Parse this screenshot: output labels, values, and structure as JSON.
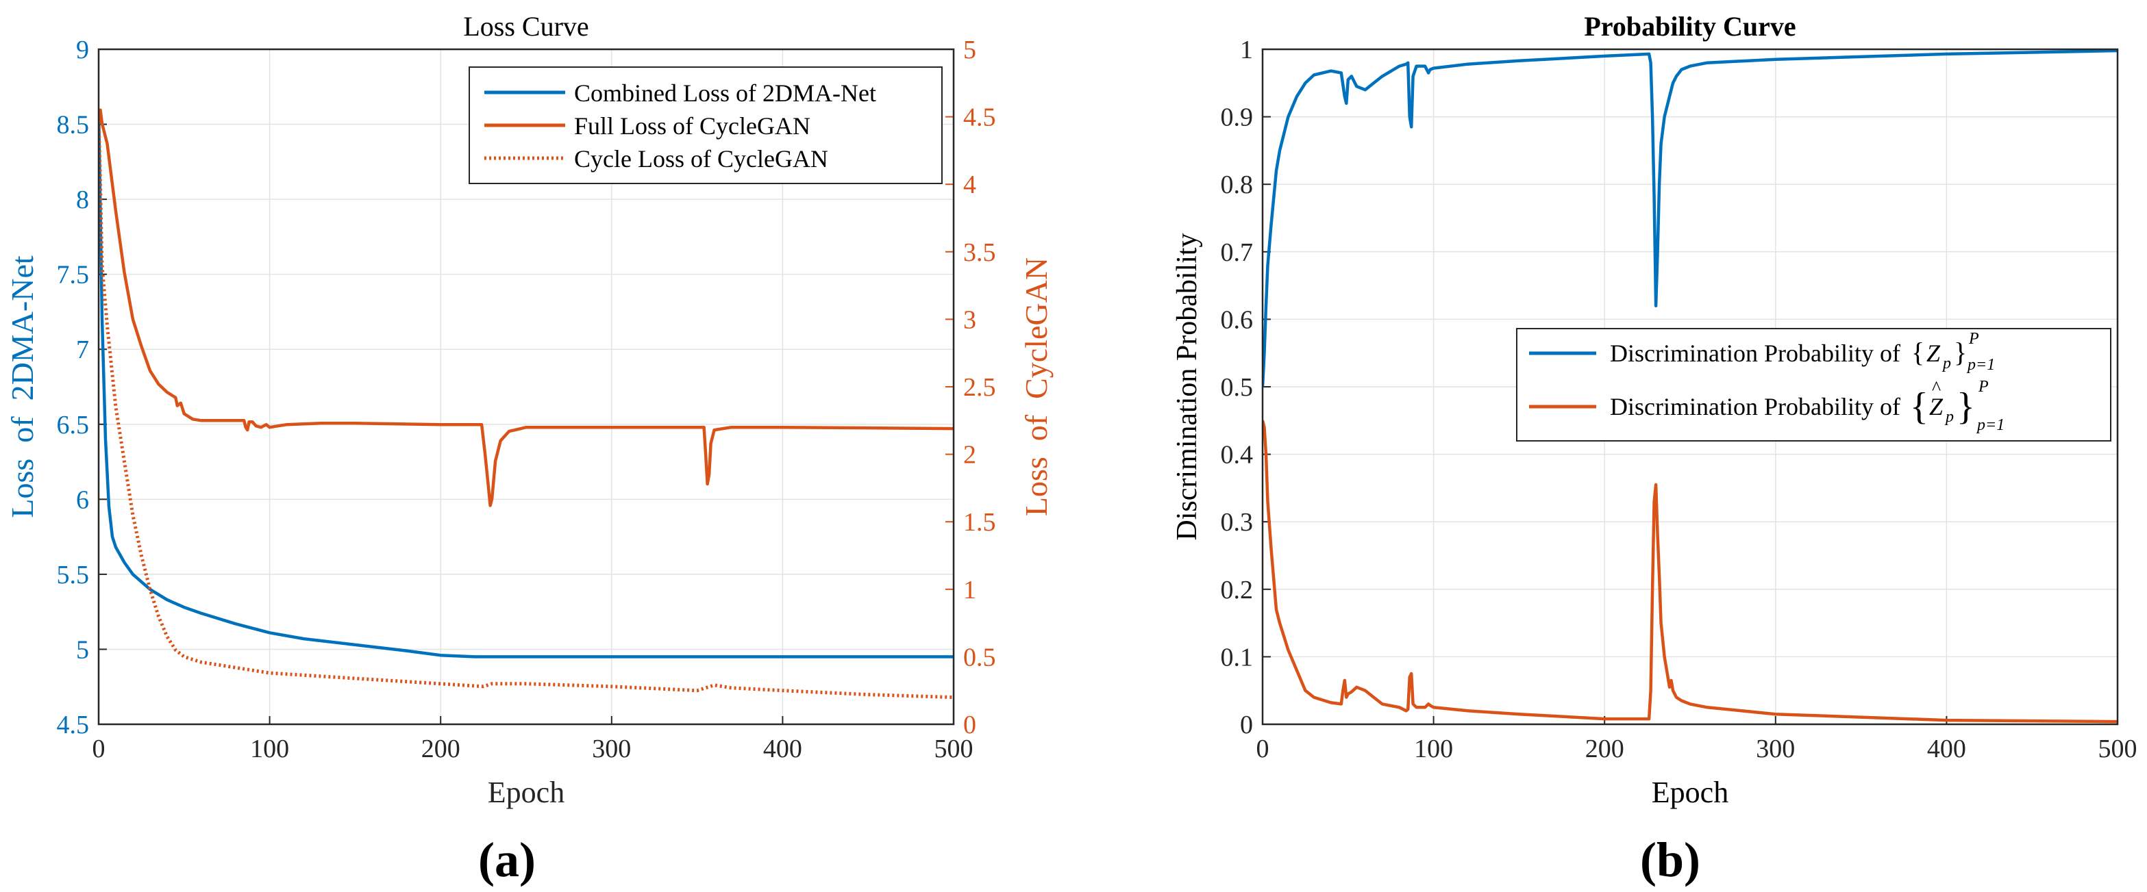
{
  "chart_data": [
    {
      "panel_label": "(a)",
      "type": "line",
      "title": "Loss Curve",
      "xlabel": "Epoch",
      "ylabel_left": "Loss  of  2DMA-Net",
      "ylabel_right": "Loss  of  CycleGAN",
      "xlim": [
        0,
        500
      ],
      "ylim_left": [
        4.5,
        9
      ],
      "ylim_right": [
        0,
        5
      ],
      "grid": true,
      "legend_position": "top-right",
      "xticks": [
        "0",
        "100",
        "200",
        "300",
        "400",
        "500"
      ],
      "yticks_left": [
        "4.5",
        "5",
        "5.5",
        "6",
        "6.5",
        "7",
        "7.5",
        "8",
        "8.5",
        "9"
      ],
      "yticks_right": [
        "0",
        "0.5",
        "1",
        "1.5",
        "2",
        "2.5",
        "3",
        "3.5",
        "4",
        "4.5",
        "5"
      ],
      "series": [
        {
          "name": "Combined Loss of 2DMA-Net",
          "axis": "left",
          "color": "#0072BD",
          "style": "solid",
          "x": [
            0,
            2,
            4,
            6,
            8,
            10,
            15,
            20,
            30,
            40,
            50,
            60,
            80,
            100,
            120,
            150,
            180,
            200,
            220,
            250,
            300,
            350,
            400,
            450,
            500
          ],
          "y": [
            8.6,
            7.2,
            6.4,
            5.95,
            5.75,
            5.68,
            5.58,
            5.5,
            5.4,
            5.33,
            5.28,
            5.24,
            5.17,
            5.11,
            5.07,
            5.03,
            4.99,
            4.96,
            4.95,
            4.95,
            4.95,
            4.95,
            4.95,
            4.95,
            4.95
          ]
        },
        {
          "name": "Full Loss of CycleGAN",
          "axis": "right",
          "color": "#D95319",
          "style": "solid",
          "x": [
            0,
            1,
            2,
            3,
            5,
            8,
            10,
            15,
            20,
            25,
            30,
            35,
            40,
            45,
            46,
            48,
            50,
            55,
            60,
            70,
            85,
            86,
            87,
            88,
            90,
            92,
            95,
            98,
            100,
            110,
            130,
            150,
            200,
            224,
            226,
            228,
            229,
            230,
            232,
            235,
            240,
            250,
            300,
            354,
            355,
            356,
            357,
            358,
            360,
            370,
            400,
            500
          ],
          "y": [
            4.45,
            4.55,
            4.45,
            4.4,
            4.3,
            4.0,
            3.8,
            3.35,
            3.0,
            2.8,
            2.62,
            2.52,
            2.46,
            2.42,
            2.36,
            2.38,
            2.3,
            2.26,
            2.25,
            2.25,
            2.25,
            2.2,
            2.18,
            2.24,
            2.24,
            2.21,
            2.2,
            2.22,
            2.2,
            2.22,
            2.23,
            2.23,
            2.22,
            2.22,
            2.0,
            1.75,
            1.62,
            1.67,
            1.95,
            2.1,
            2.17,
            2.2,
            2.2,
            2.2,
            2.0,
            1.78,
            1.85,
            2.08,
            2.18,
            2.2,
            2.2,
            2.19
          ]
        },
        {
          "name": "Cycle Loss of CycleGAN",
          "axis": "right",
          "color": "#D95319",
          "style": "dotted",
          "x": [
            0,
            1,
            2,
            5,
            10,
            15,
            20,
            25,
            30,
            35,
            40,
            45,
            50,
            60,
            70,
            80,
            90,
            100,
            150,
            200,
            225,
            230,
            250,
            300,
            350,
            360,
            370,
            400,
            450,
            500
          ],
          "y": [
            4.5,
            4.0,
            3.4,
            2.95,
            2.35,
            1.95,
            1.55,
            1.25,
            1.0,
            0.8,
            0.65,
            0.55,
            0.5,
            0.46,
            0.44,
            0.42,
            0.4,
            0.38,
            0.34,
            0.3,
            0.28,
            0.3,
            0.3,
            0.28,
            0.25,
            0.29,
            0.27,
            0.25,
            0.22,
            0.2
          ]
        }
      ]
    },
    {
      "panel_label": "(b)",
      "type": "line",
      "title": "Probability Curve",
      "xlabel": "Epoch",
      "ylabel": "Discrimination Probability",
      "xlim": [
        0,
        500
      ],
      "ylim": [
        0,
        1
      ],
      "grid": true,
      "legend_position": "center-right",
      "xticks": [
        "0",
        "100",
        "200",
        "300",
        "400",
        "500"
      ],
      "yticks": [
        "0",
        "0.1",
        "0.2",
        "0.3",
        "0.4",
        "0.5",
        "0.6",
        "0.7",
        "0.8",
        "0.9",
        "1"
      ],
      "series": [
        {
          "name": "Discrimination Probability of {Zp}p=1..P",
          "legend_text": "Discrimination Probability of ",
          "color": "#0072BD",
          "x": [
            0,
            1,
            2,
            3,
            5,
            8,
            10,
            15,
            20,
            25,
            30,
            40,
            46,
            48,
            49,
            50,
            52,
            55,
            60,
            65,
            70,
            80,
            84,
            85,
            86,
            87,
            88,
            90,
            95,
            97,
            98,
            100,
            120,
            150,
            200,
            226,
            227,
            228,
            229,
            230,
            231,
            232,
            233,
            235,
            238,
            240,
            242,
            245,
            250,
            260,
            300,
            400,
            500
          ],
          "y": [
            0.5,
            0.55,
            0.62,
            0.68,
            0.74,
            0.82,
            0.85,
            0.9,
            0.93,
            0.95,
            0.962,
            0.968,
            0.965,
            0.93,
            0.92,
            0.955,
            0.96,
            0.945,
            0.94,
            0.95,
            0.96,
            0.975,
            0.978,
            0.98,
            0.9,
            0.885,
            0.96,
            0.975,
            0.975,
            0.965,
            0.97,
            0.972,
            0.978,
            0.983,
            0.99,
            0.993,
            0.98,
            0.9,
            0.78,
            0.62,
            0.7,
            0.8,
            0.86,
            0.9,
            0.93,
            0.95,
            0.96,
            0.97,
            0.975,
            0.98,
            0.985,
            0.993,
            0.998
          ]
        },
        {
          "name": "Discrimination Probability of {Ẑp}p=1..P",
          "legend_text": "Discrimination Probability of ",
          "color": "#D95319",
          "x": [
            0,
            1,
            2,
            3,
            5,
            8,
            10,
            15,
            20,
            25,
            30,
            40,
            46,
            47,
            48,
            49,
            50,
            52,
            55,
            60,
            65,
            70,
            80,
            84,
            85,
            86,
            87,
            88,
            90,
            95,
            97,
            98,
            100,
            120,
            150,
            200,
            226,
            227,
            228,
            229,
            230,
            231,
            232,
            233,
            235,
            237,
            238,
            239,
            240,
            242,
            245,
            250,
            260,
            300,
            400,
            500
          ],
          "y": [
            0.45,
            0.44,
            0.4,
            0.33,
            0.26,
            0.17,
            0.15,
            0.11,
            0.08,
            0.05,
            0.04,
            0.032,
            0.03,
            0.05,
            0.065,
            0.04,
            0.045,
            0.048,
            0.055,
            0.05,
            0.04,
            0.03,
            0.025,
            0.02,
            0.022,
            0.07,
            0.075,
            0.03,
            0.025,
            0.025,
            0.03,
            0.028,
            0.025,
            0.02,
            0.015,
            0.008,
            0.008,
            0.05,
            0.2,
            0.33,
            0.355,
            0.28,
            0.22,
            0.15,
            0.1,
            0.07,
            0.055,
            0.065,
            0.05,
            0.04,
            0.035,
            0.03,
            0.025,
            0.015,
            0.006,
            0.004
          ]
        }
      ]
    }
  ],
  "colors": {
    "blue": "#0072BD",
    "orange": "#D95319",
    "grid": "#E3E3E3",
    "axis": "#262626"
  },
  "math_symbols": {
    "z": "Z",
    "p": "p",
    "P": "P",
    "eq": "p=1"
  }
}
